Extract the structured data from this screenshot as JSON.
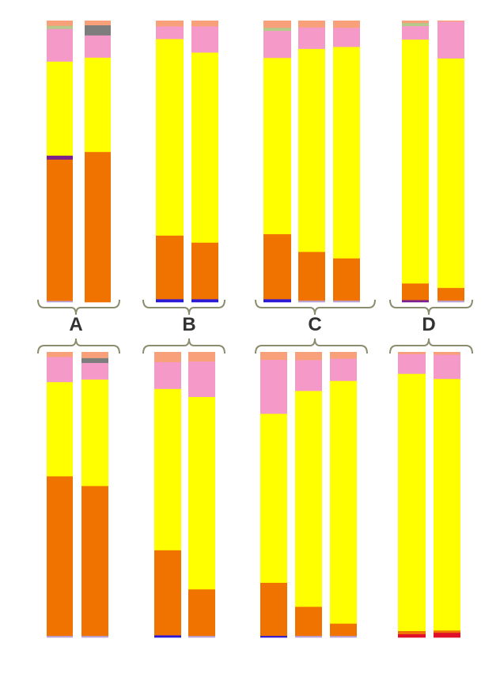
{
  "colors": {
    "orange": "#f07300",
    "yellow": "#ffff00",
    "pink": "#f59ac8",
    "salmon": "#f7a07a",
    "gray": "#7d7d7d",
    "blue": "#2b19d6",
    "purple": "#7a1f8c",
    "red": "#e0102a",
    "lightgreen": "#b5c98a",
    "lavender": "#b6a0d8",
    "bracket": "#8c8c6e",
    "label": "#333333"
  },
  "chart_data": [
    {
      "type": "bar",
      "stacked": true,
      "normalized": true,
      "panel": "top",
      "groups": [
        {
          "label": "A",
          "bars": [
            {
              "segments": [
                {
                  "color": "lavender",
                  "value": 0.5
                },
                {
                  "color": "orange",
                  "value": 50.2
                },
                {
                  "color": "purple",
                  "value": 1.4
                },
                {
                  "color": "yellow",
                  "value": 33.4
                },
                {
                  "color": "pink",
                  "value": 11.6
                },
                {
                  "color": "lightgreen",
                  "value": 1.1
                },
                {
                  "color": "salmon",
                  "value": 1.8
                }
              ]
            },
            {
              "segments": [
                {
                  "color": "orange",
                  "value": 53.4
                },
                {
                  "color": "yellow",
                  "value": 33.5
                },
                {
                  "color": "pink",
                  "value": 7.9
                },
                {
                  "color": "gray",
                  "value": 3.6
                },
                {
                  "color": "salmon",
                  "value": 1.6
                }
              ]
            }
          ]
        },
        {
          "label": "B",
          "bars": [
            {
              "segments": [
                {
                  "color": "blue",
                  "value": 1.1
                },
                {
                  "color": "orange",
                  "value": 22.6
                },
                {
                  "color": "yellow",
                  "value": 69.8
                },
                {
                  "color": "pink",
                  "value": 4.5
                },
                {
                  "color": "salmon",
                  "value": 2.0
                }
              ]
            },
            {
              "segments": [
                {
                  "color": "blue",
                  "value": 1.1
                },
                {
                  "color": "orange",
                  "value": 20.1
                },
                {
                  "color": "yellow",
                  "value": 67.5
                },
                {
                  "color": "pink",
                  "value": 9.3
                },
                {
                  "color": "salmon",
                  "value": 2.0
                }
              ]
            }
          ]
        },
        {
          "label": "C",
          "bars": [
            {
              "segments": [
                {
                  "color": "blue",
                  "value": 1.1
                },
                {
                  "color": "orange",
                  "value": 23.1
                },
                {
                  "color": "yellow",
                  "value": 62.6
                },
                {
                  "color": "pink",
                  "value": 9.6
                },
                {
                  "color": "lightgreen",
                  "value": 1.1
                },
                {
                  "color": "salmon",
                  "value": 2.5
                }
              ]
            },
            {
              "segments": [
                {
                  "color": "lavender",
                  "value": 0.6
                },
                {
                  "color": "orange",
                  "value": 17.3
                },
                {
                  "color": "yellow",
                  "value": 72.1
                },
                {
                  "color": "pink",
                  "value": 7.6
                },
                {
                  "color": "salmon",
                  "value": 2.4
                }
              ]
            },
            {
              "segments": [
                {
                  "color": "lavender",
                  "value": 0.6
                },
                {
                  "color": "orange",
                  "value": 15.0
                },
                {
                  "color": "yellow",
                  "value": 75.1
                },
                {
                  "color": "pink",
                  "value": 6.8
                },
                {
                  "color": "salmon",
                  "value": 2.5
                }
              ]
            }
          ]
        },
        {
          "label": "D",
          "bars": [
            {
              "segments": [
                {
                  "color": "purple",
                  "value": 0.8
                },
                {
                  "color": "orange",
                  "value": 5.9
                },
                {
                  "color": "yellow",
                  "value": 86.6
                },
                {
                  "color": "pink",
                  "value": 4.8
                },
                {
                  "color": "lightgreen",
                  "value": 1.1
                },
                {
                  "color": "salmon",
                  "value": 0.8
                }
              ]
            },
            {
              "segments": [
                {
                  "color": "lavender",
                  "value": 0.6
                },
                {
                  "color": "orange",
                  "value": 4.5
                },
                {
                  "color": "yellow",
                  "value": 81.5
                },
                {
                  "color": "pink",
                  "value": 13.1
                },
                {
                  "color": "salmon",
                  "value": 0.3
                }
              ]
            }
          ]
        }
      ]
    },
    {
      "type": "bar",
      "stacked": true,
      "normalized": true,
      "panel": "bottom",
      "groups": [
        {
          "label": "A",
          "bars": [
            {
              "segments": [
                {
                  "color": "lavender",
                  "value": 0.6
                },
                {
                  "color": "orange",
                  "value": 55.9
                },
                {
                  "color": "yellow",
                  "value": 33.0
                },
                {
                  "color": "pink",
                  "value": 8.8
                },
                {
                  "color": "salmon",
                  "value": 1.7
                }
              ]
            },
            {
              "segments": [
                {
                  "color": "lavender",
                  "value": 0.6
                },
                {
                  "color": "orange",
                  "value": 52.5
                },
                {
                  "color": "yellow",
                  "value": 37.3
                },
                {
                  "color": "pink",
                  "value": 5.8
                },
                {
                  "color": "gray",
                  "value": 1.7
                },
                {
                  "color": "salmon",
                  "value": 2.1
                }
              ]
            }
          ]
        },
        {
          "label": "B",
          "bars": [
            {
              "segments": [
                {
                  "color": "blue",
                  "value": 0.8
                },
                {
                  "color": "orange",
                  "value": 29.8
                },
                {
                  "color": "yellow",
                  "value": 56.5
                },
                {
                  "color": "pink",
                  "value": 9.4
                },
                {
                  "color": "salmon",
                  "value": 3.5
                }
              ]
            },
            {
              "segments": [
                {
                  "color": "lavender",
                  "value": 0.6
                },
                {
                  "color": "orange",
                  "value": 16.3
                },
                {
                  "color": "yellow",
                  "value": 67.4
                },
                {
                  "color": "pink",
                  "value": 12.4
                },
                {
                  "color": "salmon",
                  "value": 3.3
                }
              ]
            }
          ]
        },
        {
          "label": "C",
          "bars": [
            {
              "segments": [
                {
                  "color": "blue",
                  "value": 0.6
                },
                {
                  "color": "orange",
                  "value": 18.6
                },
                {
                  "color": "yellow",
                  "value": 59.2
                },
                {
                  "color": "pink",
                  "value": 18.9
                },
                {
                  "color": "salmon",
                  "value": 2.7
                }
              ]
            },
            {
              "segments": [
                {
                  "color": "lavender",
                  "value": 0.6
                },
                {
                  "color": "orange",
                  "value": 10.2
                },
                {
                  "color": "yellow",
                  "value": 75.6
                },
                {
                  "color": "pink",
                  "value": 10.8
                },
                {
                  "color": "salmon",
                  "value": 2.8
                }
              ]
            },
            {
              "segments": [
                {
                  "color": "lavender",
                  "value": 0.6
                },
                {
                  "color": "orange",
                  "value": 4.3
                },
                {
                  "color": "yellow",
                  "value": 85.0
                },
                {
                  "color": "pink",
                  "value": 7.8
                },
                {
                  "color": "salmon",
                  "value": 2.3
                }
              ]
            }
          ]
        },
        {
          "label": "D",
          "bars": [
            {
              "segments": [
                {
                  "color": "red",
                  "value": 1.2
                },
                {
                  "color": "orange",
                  "value": 1.1
                },
                {
                  "color": "yellow",
                  "value": 90.1
                },
                {
                  "color": "pink",
                  "value": 6.9
                },
                {
                  "color": "salmon",
                  "value": 0.7
                }
              ]
            },
            {
              "segments": [
                {
                  "color": "red",
                  "value": 1.7
                },
                {
                  "color": "orange",
                  "value": 0.8
                },
                {
                  "color": "yellow",
                  "value": 88.1
                },
                {
                  "color": "pink",
                  "value": 8.5
                },
                {
                  "color": "salmon",
                  "value": 0.9
                }
              ]
            }
          ]
        }
      ]
    }
  ]
}
